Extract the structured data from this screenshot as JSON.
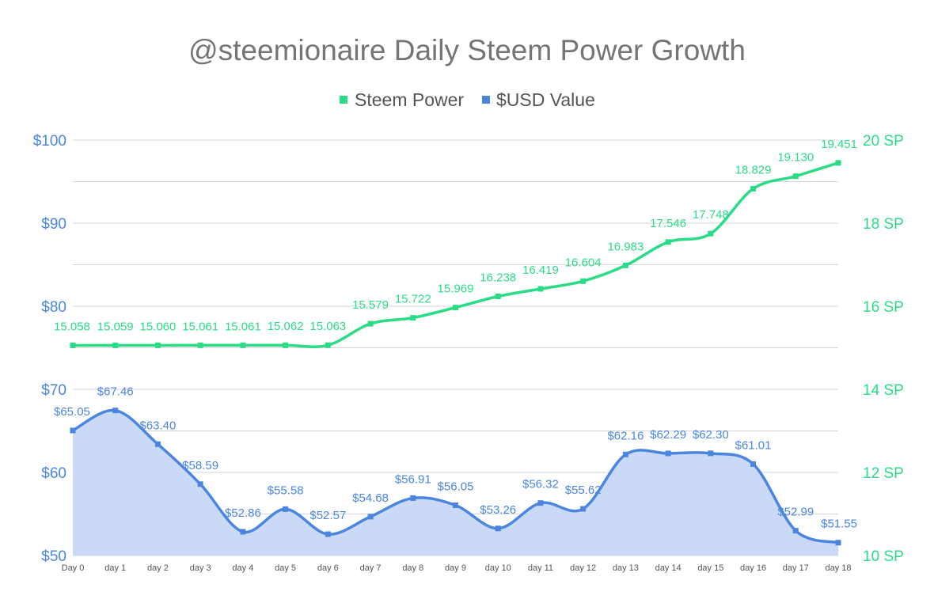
{
  "chart_data": {
    "type": "line",
    "title": "@steemionaire Daily Steem Power Growth",
    "legend_position": "top",
    "grid": true,
    "colors": {
      "sp": "#2bdc87",
      "usd": "#4a86e0",
      "usd_fill": "#c9d9f6",
      "grid": "#d6d6d6"
    },
    "categories": [
      "Day 0",
      "day 1",
      "day 2",
      "day 3",
      "day 4",
      "day 5",
      "day 6",
      "day 7",
      "day 8",
      "day 9",
      "day 10",
      "day 11",
      "day 12",
      "day 13",
      "day 14",
      "day 15",
      "day 16",
      "day 17",
      "day 18"
    ],
    "left_axis": {
      "ylim": [
        50,
        100
      ],
      "ticks": [
        {
          "value": 100,
          "label": "$100"
        },
        {
          "value": 90,
          "label": "$90"
        },
        {
          "value": 80,
          "label": "$80"
        },
        {
          "value": 70,
          "label": "$70"
        },
        {
          "value": 60,
          "label": "$60"
        },
        {
          "value": 50,
          "label": "$50"
        }
      ]
    },
    "right_axis": {
      "ylim": [
        10,
        20
      ],
      "ticks": [
        {
          "value": 20,
          "label": "20 SP"
        },
        {
          "value": 18,
          "label": "18 SP"
        },
        {
          "value": 16,
          "label": "16 SP"
        },
        {
          "value": 14,
          "label": "14 SP"
        },
        {
          "value": 12,
          "label": "12 SP"
        },
        {
          "value": 10,
          "label": "10 SP"
        }
      ]
    },
    "series": [
      {
        "name": "Steem Power",
        "axis": "right",
        "style": "line",
        "values": [
          15.058,
          15.059,
          15.06,
          15.061,
          15.061,
          15.062,
          15.063,
          15.579,
          15.722,
          15.969,
          16.238,
          16.419,
          16.604,
          16.983,
          17.546,
          17.748,
          18.829,
          19.13,
          19.451
        ],
        "labels": [
          "15.058",
          "15.059",
          "15.060",
          "15.061",
          "15.061",
          "15.062",
          "15.063",
          "15.579",
          "15.722",
          "15.969",
          "16.238",
          "16.419",
          "16.604",
          "16.983",
          "17.546",
          "17.748",
          "18.829",
          "19.130",
          "19.451"
        ]
      },
      {
        "name": "$USD Value",
        "axis": "left",
        "style": "area",
        "values": [
          65.05,
          67.46,
          63.4,
          58.59,
          52.86,
          55.58,
          52.57,
          54.68,
          56.91,
          56.05,
          53.26,
          56.32,
          55.62,
          62.16,
          62.29,
          62.3,
          61.01,
          52.99,
          51.55
        ],
        "labels": [
          "$65.05",
          "$67.46",
          "$63.40",
          "$58.59",
          "$52.86",
          "$55.58",
          "$52.57",
          "$54.68",
          "$56.91",
          "$56.05",
          "$53.26",
          "$56.32",
          "$55.62",
          "$62.16",
          "$62.29",
          "$62.30",
          "$61.01",
          "$52.99",
          "$51.55"
        ]
      }
    ]
  }
}
